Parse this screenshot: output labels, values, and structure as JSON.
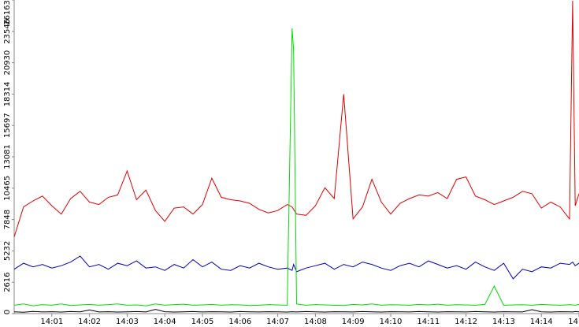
{
  "chart_data": {
    "type": "line",
    "x": [
      0,
      0.25,
      0.5,
      0.75,
      1,
      1.25,
      1.5,
      1.75,
      2,
      2.25,
      2.5,
      2.75,
      3,
      3.25,
      3.5,
      3.75,
      4,
      4.25,
      4.5,
      4.75,
      5,
      5.25,
      5.5,
      5.75,
      6,
      6.25,
      6.5,
      6.75,
      7,
      7.25,
      7.38,
      7.42,
      7.5,
      7.75,
      8,
      8.25,
      8.5,
      8.75,
      9,
      9.25,
      9.5,
      9.75,
      10,
      10.25,
      10.5,
      10.75,
      11,
      11.25,
      11.5,
      11.75,
      12,
      12.25,
      12.5,
      12.75,
      13,
      13.25,
      13.5,
      13.75,
      14,
      14.25,
      14.5,
      14.75,
      14.83,
      14.9,
      15
    ],
    "series": [
      {
        "color": "#e00000",
        "values": [
          6400,
          8900,
          9400,
          9800,
          9000,
          8300,
          9600,
          10200,
          9300,
          9100,
          9700,
          9900,
          11900,
          9500,
          10300,
          8600,
          7700,
          8800,
          8900,
          8300,
          9100,
          11300,
          9700,
          9500,
          9400,
          9200,
          8700,
          8400,
          8600,
          9100,
          8900,
          8700,
          8300,
          8200,
          9000,
          10500,
          9600,
          18300,
          7900,
          8900,
          11200,
          9300,
          8300,
          9200,
          9600,
          9900,
          9800,
          10100,
          9600,
          11200,
          11400,
          9800,
          9500,
          9100,
          9400,
          9700,
          10200,
          10000,
          8800,
          9300,
          8900,
          7900,
          26100,
          9000,
          10000
        ]
      },
      {
        "color": "#0000c0",
        "values": [
          3700,
          4200,
          3900,
          4100,
          3800,
          4000,
          4300,
          4800,
          3900,
          4100,
          3700,
          4200,
          4000,
          4400,
          3800,
          3900,
          3600,
          4100,
          3800,
          4500,
          3900,
          4300,
          3700,
          3600,
          4000,
          3800,
          4200,
          3900,
          3700,
          3800,
          3600,
          4100,
          3500,
          3800,
          4000,
          4200,
          3700,
          4100,
          3900,
          4300,
          4100,
          3800,
          3600,
          4000,
          4200,
          3900,
          4400,
          4100,
          3800,
          4000,
          3700,
          4300,
          3900,
          3600,
          4200,
          2900,
          3700,
          3500,
          3900,
          3800,
          4200,
          4100,
          4300,
          4000,
          4200
        ]
      },
      {
        "color": "#00dd00",
        "values": [
          700,
          800,
          650,
          750,
          700,
          800,
          680,
          720,
          760,
          700,
          750,
          800,
          700,
          720,
          650,
          800,
          700,
          750,
          780,
          700,
          720,
          760,
          700,
          740,
          720,
          680,
          700,
          750,
          720,
          700,
          23800,
          22000,
          800,
          700,
          750,
          720,
          700,
          680,
          760,
          720,
          800,
          700,
          740,
          720,
          700,
          760,
          720,
          780,
          700,
          740,
          720,
          700,
          760,
          2300,
          700,
          720,
          740,
          700,
          760,
          720,
          700,
          740,
          720,
          700,
          760
        ]
      },
      {
        "color": "#000000",
        "values": [
          150,
          120,
          180,
          140,
          160,
          130,
          170,
          150,
          300,
          140,
          160,
          130,
          150,
          170,
          140,
          350,
          160,
          130,
          150,
          170,
          140,
          160,
          150,
          130,
          170,
          150,
          140,
          160,
          150,
          130,
          160,
          150,
          140,
          170,
          150,
          130,
          160,
          150,
          140,
          170,
          150,
          130,
          160,
          150,
          140,
          170,
          150,
          130,
          160,
          150,
          140,
          170,
          150,
          130,
          160,
          150,
          140,
          330,
          150,
          130,
          160,
          150,
          140,
          170,
          150
        ]
      }
    ],
    "xlim": [
      0,
      15
    ],
    "xticks": [
      {
        "value": 1,
        "label": "14:01"
      },
      {
        "value": 2,
        "label": "14:02"
      },
      {
        "value": 3,
        "label": "14:03"
      },
      {
        "value": 4,
        "label": "14:04"
      },
      {
        "value": 5,
        "label": "14:05"
      },
      {
        "value": 6,
        "label": "14:06"
      },
      {
        "value": 7,
        "label": "14:07"
      },
      {
        "value": 8,
        "label": "14:08"
      },
      {
        "value": 9,
        "label": "14:09"
      },
      {
        "value": 10,
        "label": "14:10"
      },
      {
        "value": 11,
        "label": "14:11"
      },
      {
        "value": 12,
        "label": "14:12"
      },
      {
        "value": 13,
        "label": "14:13"
      },
      {
        "value": 14,
        "label": "14:14"
      },
      {
        "value": 15,
        "label": "14"
      }
    ],
    "ylim": [
      0,
      26163
    ],
    "yticks": [
      0,
      2616,
      5232,
      7848,
      10465,
      13081,
      15697,
      18314,
      20930,
      23546,
      26163
    ]
  }
}
